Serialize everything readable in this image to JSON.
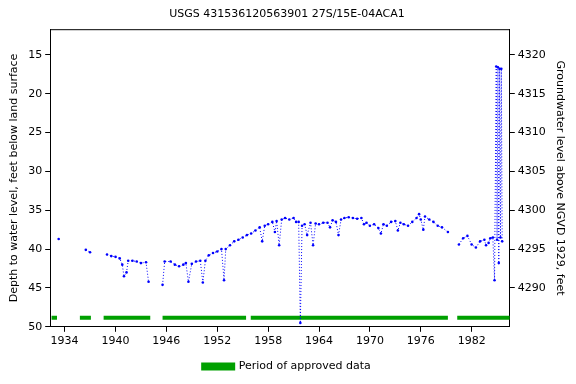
{
  "chart_data": {
    "type": "scatter",
    "title": "USGS 431536120563901 27S/15E-04ACA1",
    "y_label": "Depth to water level, feet below land surface",
    "y2_label": "Groundwater level above NGVD 1929, feet",
    "xlim": [
      1932.3,
      1986.5
    ],
    "xticks": [
      1934,
      1940,
      1946,
      1952,
      1958,
      1964,
      1970,
      1976,
      1982
    ],
    "ylim": [
      50,
      11.7
    ],
    "yticks": [
      15,
      20,
      25,
      30,
      35,
      40,
      45,
      50
    ],
    "y2lim": [
      4285,
      4323.3
    ],
    "y2ticks": [
      4290,
      4295,
      4300,
      4305,
      4310,
      4315,
      4320
    ],
    "grid": false,
    "legend": "bottom",
    "series": [
      {
        "color": "#0000ff",
        "marker": "circle",
        "line_style": "dotted",
        "x": [
          1933.3,
          1935.0,
          1936.5,
          1937.0,
          1938.0,
          1939.0,
          1939.5,
          1940.0,
          1940.5,
          1940.8,
          1941.0,
          1941.3,
          1941.5,
          1942.0,
          1942.5,
          1943.0,
          1943.6,
          1943.9,
          1944.7,
          1945.55,
          1945.8,
          1946.5,
          1947.0,
          1947.5,
          1948.0,
          1948.3,
          1948.6,
          1949.0,
          1949.5,
          1950.0,
          1950.3,
          1950.6,
          1951.0,
          1951.5,
          1952.0,
          1952.5,
          1952.8,
          1953.0,
          1953.5,
          1954.0,
          1954.5,
          1955.0,
          1955.5,
          1956.0,
          1956.5,
          1957.0,
          1957.3,
          1957.6,
          1958.0,
          1958.5,
          1958.8,
          1959.0,
          1959.3,
          1959.6,
          1960.0,
          1960.5,
          1961.0,
          1961.3,
          1961.6,
          1961.8,
          1962.0,
          1962.3,
          1962.6,
          1963.0,
          1963.3,
          1963.6,
          1964.0,
          1964.5,
          1965.0,
          1965.3,
          1965.6,
          1966.0,
          1966.3,
          1966.6,
          1967.0,
          1967.5,
          1968.0,
          1968.5,
          1969.0,
          1969.3,
          1969.6,
          1970.0,
          1970.5,
          1971.0,
          1971.3,
          1971.6,
          1972.0,
          1972.5,
          1973.0,
          1973.3,
          1973.6,
          1974.0,
          1974.5,
          1975.0,
          1975.5,
          1975.8,
          1976.0,
          1976.3,
          1976.5,
          1977.0,
          1977.5,
          1978.0,
          1978.5,
          1979.2,
          1979.9,
          1980.5,
          1981.0,
          1981.5,
          1982.0,
          1982.5,
          1983.0,
          1983.5,
          1983.7,
          1984.0,
          1984.2,
          1984.5,
          1984.7,
          1984.9,
          1985.0,
          1985.1,
          1985.2,
          1985.3,
          1985.4,
          1985.5,
          1985.6
        ],
        "values": [
          38.7,
          null,
          40.1,
          40.4,
          null,
          40.7,
          40.9,
          41.0,
          41.2,
          42.0,
          43.5,
          43.0,
          41.5,
          41.5,
          41.6,
          41.8,
          41.7,
          44.2,
          null,
          44.6,
          41.6,
          41.6,
          42.0,
          42.2,
          42.0,
          41.8,
          44.2,
          41.9,
          41.6,
          41.5,
          44.3,
          41.5,
          40.8,
          40.5,
          40.3,
          40.0,
          44.0,
          40.0,
          39.5,
          39.0,
          38.8,
          38.5,
          38.2,
          38.0,
          37.6,
          37.2,
          39.0,
          37.0,
          36.8,
          36.5,
          37.8,
          36.4,
          39.5,
          36.2,
          36.0,
          36.2,
          36.0,
          36.5,
          36.5,
          49.5,
          37.0,
          36.8,
          38.2,
          36.6,
          39.5,
          36.7,
          36.8,
          36.6,
          36.6,
          37.2,
          36.3,
          36.5,
          38.2,
          36.2,
          36.0,
          35.9,
          36.0,
          36.1,
          36.0,
          36.8,
          36.6,
          37.0,
          36.8,
          37.3,
          38.0,
          36.8,
          37.0,
          36.5,
          36.4,
          37.6,
          36.6,
          36.8,
          37.0,
          36.5,
          36.0,
          35.5,
          36.2,
          37.5,
          35.8,
          36.2,
          36.5,
          37.0,
          37.2,
          37.8,
          null,
          39.4,
          38.6,
          38.3,
          39.4,
          39.8,
          39.0,
          38.8,
          39.5,
          39.2,
          38.6,
          38.5,
          44.0,
          16.5,
          38.8,
          16.6,
          41.8,
          16.8,
          38.5,
          16.8,
          39.0
        ]
      },
      {
        "name": "Period of approved data",
        "color": "#00a000",
        "line_style": "solid",
        "periods": [
          [
            1932.46,
            1933.1
          ],
          [
            1935.8,
            1937.1
          ],
          [
            1938.6,
            1944.1
          ],
          [
            1945.55,
            1955.4
          ],
          [
            1955.95,
            1979.2
          ],
          [
            1980.3,
            1986.5
          ]
        ]
      }
    ]
  }
}
